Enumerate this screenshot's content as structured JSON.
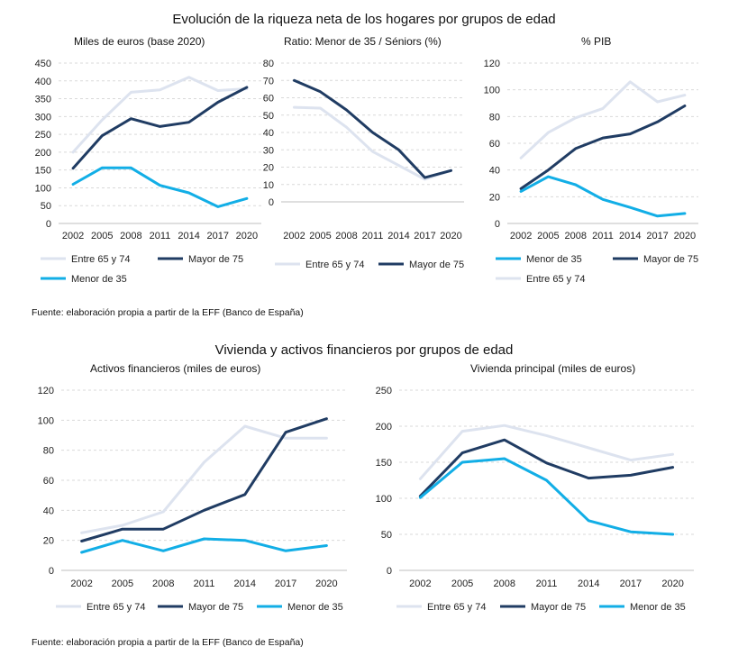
{
  "figure1": {
    "title": "Evolución de la riqueza neta de los hogares por grupos de edad",
    "source": "Fuente: elaboración propia a partir de la EFF (Banco de España)"
  },
  "figure2": {
    "title": "Vivienda y activos financieros por grupos de edad",
    "source": "Fuente: elaboración propia a partir de la EFF (Banco de España)"
  },
  "colors": {
    "Entre 65 y 74": "#dde3ef",
    "Mayor de 75": "#203c63",
    "Menor de 35": "#12aee6"
  },
  "chart_data": [
    {
      "type": "line",
      "title": "Miles de euros (base 2020)",
      "categories": [
        "2002",
        "2005",
        "2008",
        "2011",
        "2014",
        "2017",
        "2020"
      ],
      "ylim": [
        0,
        450
      ],
      "yticks": [
        0,
        50,
        100,
        150,
        200,
        250,
        300,
        350,
        400,
        450
      ],
      "grid": true,
      "legend": [
        "Entre 65 y 74",
        "Mayor de 75",
        "Menor de 35"
      ],
      "series": [
        {
          "name": "Entre 65 y 74",
          "values": [
            200,
            290,
            368,
            375,
            410,
            373,
            378
          ]
        },
        {
          "name": "Mayor de 75",
          "values": [
            155,
            246,
            294,
            272,
            284,
            340,
            382
          ]
        },
        {
          "name": "Menor de 35",
          "values": [
            110,
            156,
            156,
            107,
            86,
            47,
            70
          ]
        }
      ]
    },
    {
      "type": "line",
      "title": "Ratio: Menor de 35 / Séniors (%)",
      "categories": [
        "2002",
        "2005",
        "2008",
        "2011",
        "2014",
        "2017",
        "2020"
      ],
      "ylim": [
        0,
        80
      ],
      "yticks": [
        0,
        10,
        20,
        30,
        40,
        50,
        60,
        70,
        80
      ],
      "grid": true,
      "legend": [
        "Entre 65 y 74",
        "Mayor de 75"
      ],
      "series": [
        {
          "name": "Entre 65 y 74",
          "values": [
            54.5,
            54,
            43,
            29,
            21,
            13,
            18
          ]
        },
        {
          "name": "Mayor de 75",
          "values": [
            70,
            63.5,
            53,
            40,
            30,
            14,
            18
          ]
        }
      ]
    },
    {
      "type": "line",
      "title": "% PIB",
      "categories": [
        "2002",
        "2005",
        "2008",
        "2011",
        "2014",
        "2017",
        "2020"
      ],
      "ylim": [
        0,
        120
      ],
      "yticks": [
        0,
        20,
        40,
        60,
        80,
        100,
        120
      ],
      "grid": true,
      "legend": [
        "Menor de 35",
        "Mayor de 75",
        "Entre 65 y 74"
      ],
      "series": [
        {
          "name": "Entre 65 y 74",
          "values": [
            49,
            68,
            79,
            86,
            106,
            91,
            96
          ]
        },
        {
          "name": "Mayor de 75",
          "values": [
            26,
            40,
            56,
            64,
            67,
            76,
            88
          ]
        },
        {
          "name": "Menor de 35",
          "values": [
            24,
            35,
            29,
            18,
            12,
            5.5,
            7.5
          ]
        }
      ]
    },
    {
      "type": "line",
      "title": "Activos financieros (miles de euros)",
      "categories": [
        "2002",
        "2005",
        "2008",
        "2011",
        "2014",
        "2017",
        "2020"
      ],
      "ylim": [
        0,
        120
      ],
      "yticks": [
        0,
        20,
        40,
        60,
        80,
        100,
        120
      ],
      "grid": true,
      "legend": [
        "Entre 65 y 74",
        "Mayor de 75",
        "Menor de 35"
      ],
      "series": [
        {
          "name": "Entre 65 y 74",
          "values": [
            25,
            30,
            39,
            72,
            96,
            88,
            88
          ]
        },
        {
          "name": "Mayor de 75",
          "values": [
            19.5,
            27.5,
            27.5,
            40,
            50.5,
            92,
            101
          ]
        },
        {
          "name": "Menor de 35",
          "values": [
            12,
            20,
            13,
            21,
            20,
            13,
            16.5
          ]
        }
      ]
    },
    {
      "type": "line",
      "title": "Vivienda principal (miles de euros)",
      "categories": [
        "2002",
        "2005",
        "2008",
        "2011",
        "2014",
        "2017",
        "2020"
      ],
      "ylim": [
        0,
        250
      ],
      "yticks": [
        0,
        50,
        100,
        150,
        200,
        250
      ],
      "grid": true,
      "legend": [
        "Entre 65 y 74",
        "Mayor de 75",
        "Menor de 35"
      ],
      "series": [
        {
          "name": "Entre 65 y 74",
          "values": [
            127,
            193,
            201,
            187,
            170,
            153,
            161
          ]
        },
        {
          "name": "Mayor de 75",
          "values": [
            103,
            163,
            181,
            149,
            128,
            132,
            143
          ]
        },
        {
          "name": "Menor de 35",
          "values": [
            101,
            150,
            155,
            125,
            69,
            53.5,
            50
          ]
        }
      ]
    }
  ]
}
